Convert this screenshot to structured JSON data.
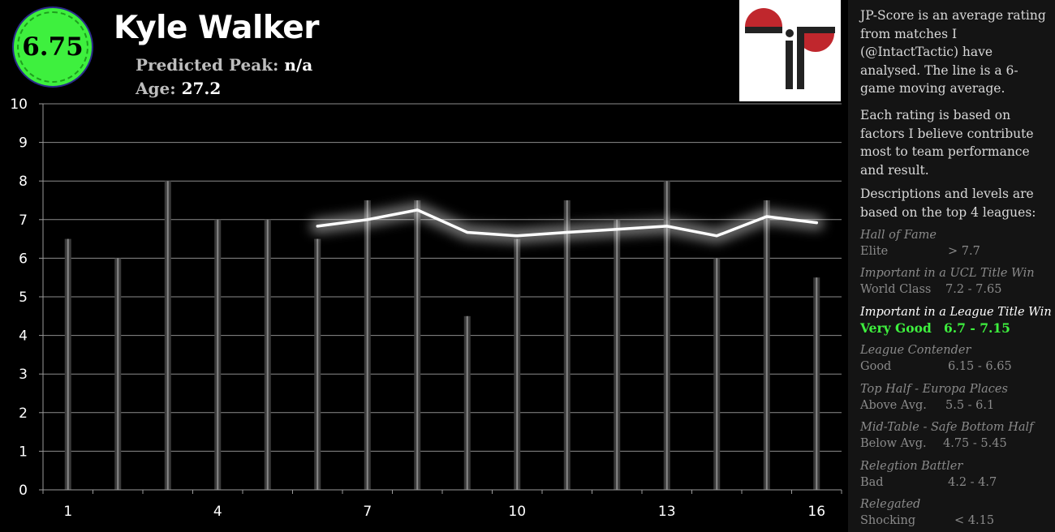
{
  "player": {
    "score": "6.75",
    "name": "Kyle Walker",
    "peak_label": "Predicted Peak:",
    "peak_value": "n/a",
    "age_label": "Age:",
    "age_value": "27.2"
  },
  "panel": {
    "intro": "JP-Score is an average rating from matches I (@IntactTactic) have analysed. The line is a 6-game moving average.",
    "basis": "Each rating is based on factors I believe contribute most to team performance and result.",
    "levels_intro": "Descriptions and levels are based on the top 4 leagues:",
    "levels": [
      {
        "title": "Hall of Fame",
        "name": "Elite",
        "range": "> 7.7"
      },
      {
        "title": "Important in a UCL Title Win",
        "name": "World Class",
        "range": "7.2 - 7.65"
      },
      {
        "title": "Important in a League Title Win",
        "name": "Very Good",
        "range": "6.7 - 7.15",
        "highlight": true
      },
      {
        "title": "League Contender",
        "name": "Good",
        "range": "6.15 - 6.65"
      },
      {
        "title": "Top Half - Europa Places",
        "name": "Above Avg.",
        "range": "5.5 - 6.1"
      },
      {
        "title": "Mid-Table - Safe Bottom Half",
        "name": "Below Avg.",
        "range": "4.75 - 5.45"
      },
      {
        "title": "Relegtion Battler",
        "name": "Bad",
        "range": "4.2 - 4.7"
      },
      {
        "title": "Relegated",
        "name": "Shocking",
        "range": "< 4.15"
      }
    ]
  },
  "colors": {
    "badge": "#3ef03e",
    "highlight": "#3ef03e",
    "logo_red": "#c0272d",
    "bar": "#555555",
    "line": "#ffffff"
  },
  "chart_data": {
    "type": "bar",
    "x": [
      1,
      2,
      3,
      4,
      5,
      6,
      7,
      8,
      9,
      10,
      11,
      12,
      13,
      14,
      15,
      16
    ],
    "x_tick_labels": [
      "1",
      "4",
      "7",
      "10",
      "13",
      "16"
    ],
    "x_tick_values": [
      1,
      4,
      7,
      10,
      13,
      16
    ],
    "ylim": [
      0,
      10
    ],
    "y_ticks": [
      0,
      1,
      2,
      3,
      4,
      5,
      6,
      7,
      8,
      9,
      10
    ],
    "grid": true,
    "series": [
      {
        "kind": "bar",
        "values": [
          6.5,
          6.0,
          8.0,
          7.0,
          7.0,
          6.5,
          7.5,
          7.5,
          4.5,
          6.5,
          7.5,
          7.0,
          8.0,
          6.0,
          7.5,
          5.5
        ]
      },
      {
        "kind": "line",
        "x": [
          6,
          7,
          8,
          9,
          10,
          11,
          12,
          13,
          14,
          15,
          16
        ],
        "values": [
          6.83,
          7.0,
          7.25,
          6.67,
          6.58,
          6.67,
          6.75,
          6.83,
          6.58,
          7.08,
          6.92
        ]
      }
    ]
  }
}
